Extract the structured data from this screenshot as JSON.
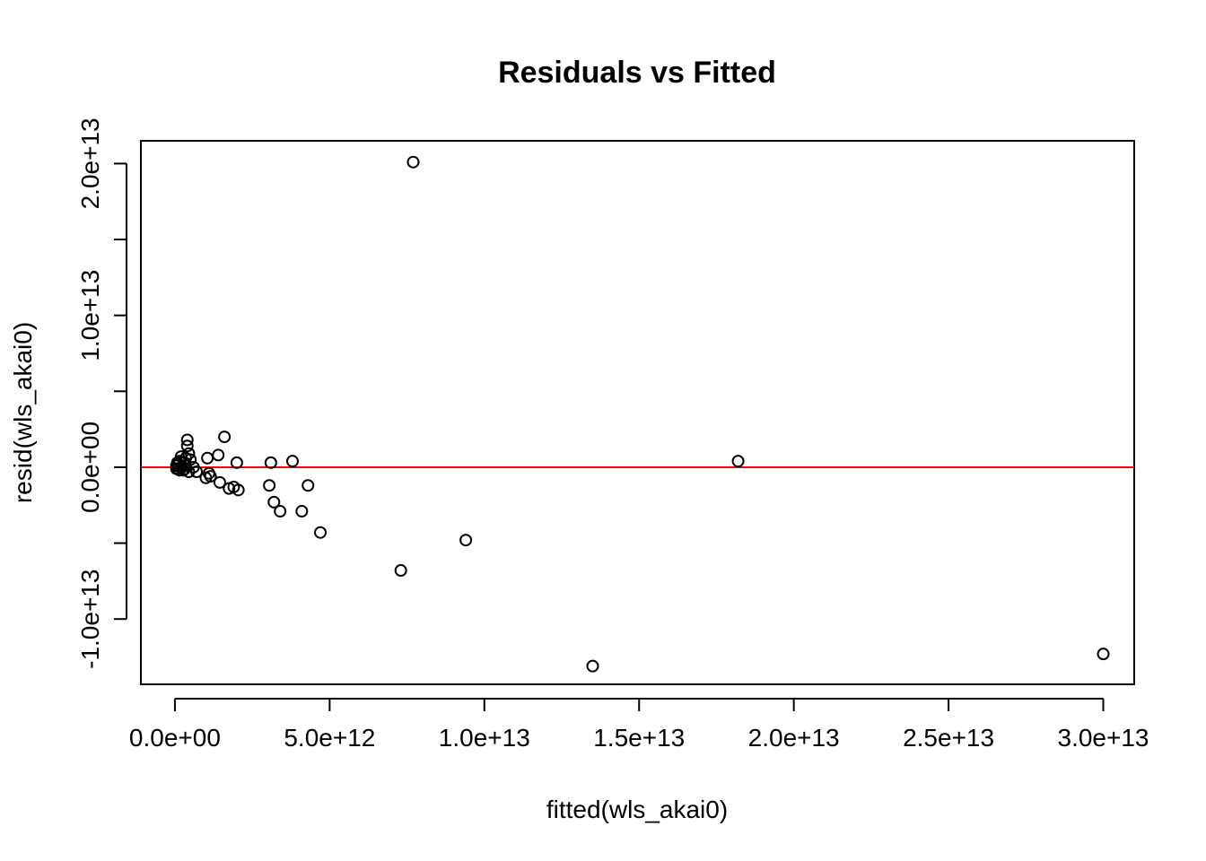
{
  "chart_data": {
    "type": "scatter",
    "title": "Residuals vs Fitted",
    "xlabel": "fitted(wls_akai0)",
    "ylabel": "resid(wls_akai0)",
    "xlim": [
      -1100000000000.0,
      31000000000000.0
    ],
    "ylim": [
      -14300000000000.0,
      21500000000000.0
    ],
    "xticks": [
      0,
      5000000000000.0,
      10000000000000.0,
      15000000000000.0,
      20000000000000.0,
      25000000000000.0,
      30000000000000.0
    ],
    "xtick_labels": [
      "0.0e+00",
      "5.0e+12",
      "1.0e+13",
      "1.5e+13",
      "2.0e+13",
      "2.5e+13",
      "3.0e+13"
    ],
    "yticks": [
      -10000000000000.0,
      -5000000000000.0,
      0,
      5000000000000.0,
      10000000000000.0,
      15000000000000.0,
      20000000000000.0
    ],
    "ytick_labels": [
      "-1.0e+13",
      "",
      "0.0e+00",
      "",
      "1.0e+13",
      "",
      "2.0e+13"
    ],
    "hline": {
      "y": 0,
      "color": "#ff0000"
    },
    "grid": false,
    "points": [
      {
        "x": 7700000000000.0,
        "y": 20100000000000.0
      },
      {
        "x": 18200000000000.0,
        "y": 400000000000.0
      },
      {
        "x": 30000000000000.0,
        "y": -12300000000000.0
      },
      {
        "x": 13500000000000.0,
        "y": -13100000000000.0
      },
      {
        "x": 9400000000000.0,
        "y": -4800000000000.0
      },
      {
        "x": 7300000000000.0,
        "y": -6800000000000.0
      },
      {
        "x": 4700000000000.0,
        "y": -4300000000000.0
      },
      {
        "x": 4100000000000.0,
        "y": -2900000000000.0
      },
      {
        "x": 4300000000000.0,
        "y": -1200000000000.0
      },
      {
        "x": 3800000000000.0,
        "y": 400000000000.0
      },
      {
        "x": 3100000000000.0,
        "y": 300000000000.0
      },
      {
        "x": 3050000000000.0,
        "y": -1200000000000.0
      },
      {
        "x": 3200000000000.0,
        "y": -2300000000000.0
      },
      {
        "x": 3400000000000.0,
        "y": -2900000000000.0
      },
      {
        "x": 2000000000000.0,
        "y": 300000000000.0
      },
      {
        "x": 2050000000000.0,
        "y": -1500000000000.0
      },
      {
        "x": 1900000000000.0,
        "y": -1300000000000.0
      },
      {
        "x": 1750000000000.0,
        "y": -1400000000000.0
      },
      {
        "x": 1600000000000.0,
        "y": 2000000000000.0
      },
      {
        "x": 1400000000000.0,
        "y": 800000000000.0
      },
      {
        "x": 1450000000000.0,
        "y": -1000000000000.0
      },
      {
        "x": 1100000000000.0,
        "y": -400000000000.0
      },
      {
        "x": 1150000000000.0,
        "y": -600000000000.0
      },
      {
        "x": 1000000000000.0,
        "y": -700000000000.0
      },
      {
        "x": 1050000000000.0,
        "y": 600000000000.0
      },
      {
        "x": 700000000000.0,
        "y": -300000000000.0
      },
      {
        "x": 400000000000.0,
        "y": 1800000000000.0
      },
      {
        "x": 400000000000.0,
        "y": 1400000000000.0
      },
      {
        "x": 450000000000.0,
        "y": 900000000000.0
      },
      {
        "x": 350000000000.0,
        "y": 600000000000.0
      },
      {
        "x": 500000000000.0,
        "y": 500000000000.0
      },
      {
        "x": 450000000000.0,
        "y": -300000000000.0
      },
      {
        "x": 300000000000.0,
        "y": 300000000000.0
      },
      {
        "x": 200000000000.0,
        "y": 700000000000.0
      },
      {
        "x": 150000000000.0,
        "y": 400000000000.0
      },
      {
        "x": 100000000000.0,
        "y": 200000000000.0
      },
      {
        "x": 100000000000.0,
        "y": -100000000000.0
      },
      {
        "x": 50000000000.0,
        "y": 100000000000.0
      },
      {
        "x": 50000000000.0,
        "y": -100000000000.0
      },
      {
        "x": 200000000000.0,
        "y": 0
      },
      {
        "x": 250000000000.0,
        "y": -200000000000.0
      },
      {
        "x": 300000000000.0,
        "y": -150000000000.0
      },
      {
        "x": 150000000000.0,
        "y": -200000000000.0
      },
      {
        "x": 80000000000.0,
        "y": 300000000000.0
      },
      {
        "x": 350000000000.0,
        "y": 100000000000.0
      },
      {
        "x": 600000000000.0,
        "y": 0
      }
    ]
  }
}
